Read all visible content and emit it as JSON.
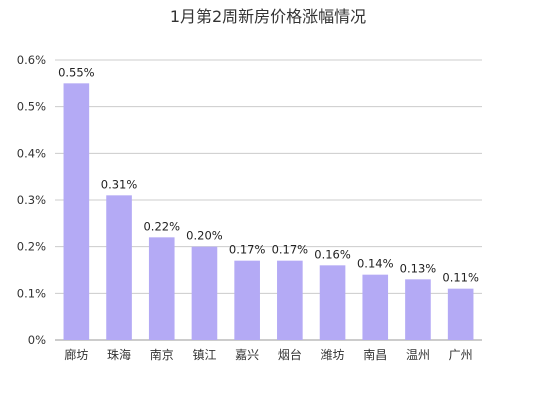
{
  "chart_data": {
    "type": "bar",
    "title": "1月第2周新房价格涨幅情况",
    "xlabel": "",
    "ylabel": "",
    "categories": [
      "廊坊",
      "珠海",
      "南京",
      "镇江",
      "嘉兴",
      "烟台",
      "潍坊",
      "南昌",
      "温州",
      "广州"
    ],
    "values": [
      0.55,
      0.31,
      0.22,
      0.2,
      0.17,
      0.17,
      0.16,
      0.14,
      0.13,
      0.11
    ],
    "value_labels": [
      "0.55%",
      "0.31%",
      "0.22%",
      "0.20%",
      "0.17%",
      "0.17%",
      "0.16%",
      "0.14%",
      "0.13%",
      "0.11%"
    ],
    "ylim": [
      0,
      0.6
    ],
    "yticks": [
      0,
      0.1,
      0.2,
      0.3,
      0.4,
      0.5,
      0.6
    ],
    "ytick_labels": [
      "0%",
      "0.1%",
      "0.2%",
      "0.3%",
      "0.4%",
      "0.5%",
      "0.6%"
    ],
    "grid": true,
    "legend": "none",
    "colors": {
      "bar": "#b4aaf5",
      "grid": "#cccccc",
      "text": "#333333"
    }
  }
}
